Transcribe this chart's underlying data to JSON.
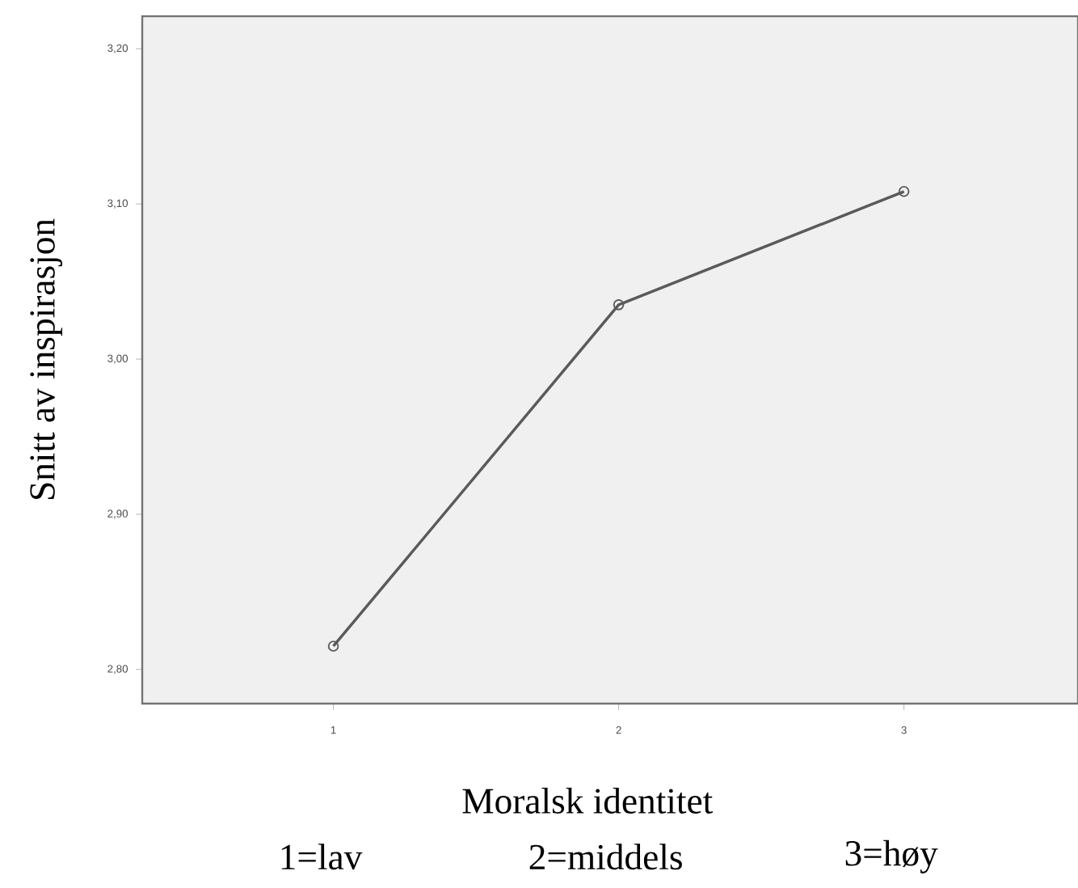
{
  "chart_data": {
    "type": "line",
    "xlabel": "Moralsk identitet",
    "ylabel": "Snitt av inspirasjon",
    "annotations": [
      "1=lav",
      "2=middels",
      "3=høy"
    ],
    "x": [
      1,
      2,
      3
    ],
    "series": [
      {
        "color": "#5a5a5a",
        "values": [
          2.815,
          3.035,
          3.108
        ]
      }
    ],
    "xlim": [
      0.33,
      3.61
    ],
    "ylim": [
      2.778,
      3.221
    ],
    "xticks": [
      1,
      2,
      3
    ],
    "yticks": [
      {
        "value": 2.8,
        "label": "2,80"
      },
      {
        "value": 2.9,
        "label": "2,90"
      },
      {
        "value": 3.0,
        "label": "3,00"
      },
      {
        "value": 3.1,
        "label": "3,10"
      },
      {
        "value": 3.2,
        "label": "3,20"
      }
    ],
    "grid": false,
    "marker": "circle",
    "line_style": "solid"
  }
}
